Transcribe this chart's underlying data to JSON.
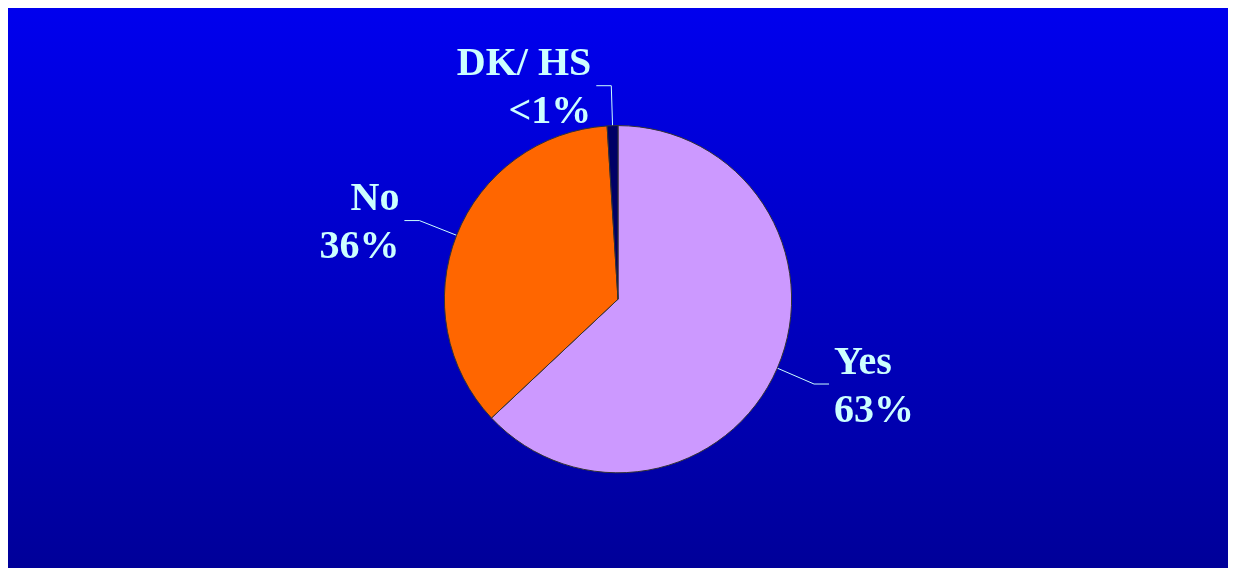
{
  "chart_data": {
    "type": "pie",
    "categories": [
      "Yes",
      "No",
      "DK/ HS"
    ],
    "values": [
      63,
      36,
      1
    ],
    "value_labels": [
      "63%",
      "36%",
      "<1%"
    ],
    "colors": [
      "#cc99ff",
      "#ff6600",
      "#000066"
    ],
    "legend": false
  }
}
